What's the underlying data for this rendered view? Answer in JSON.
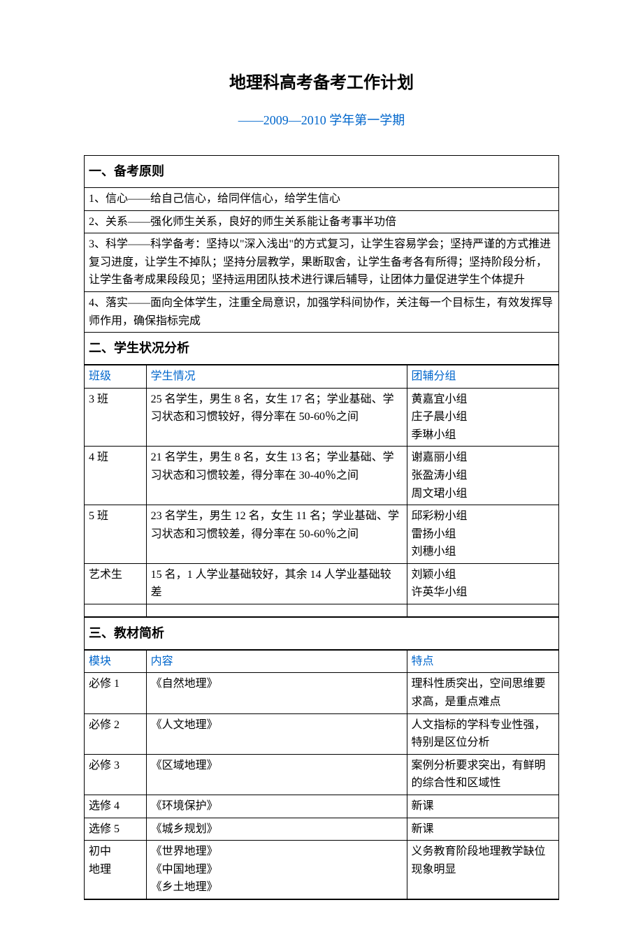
{
  "title": "地理科高考备考工作计划",
  "subtitle": "——2009—2010 学年第一学期",
  "section1": {
    "header": "一、备考原则",
    "items": [
      "1、信心——给自己信心，给同伴信心，给学生信心",
      "2、关系——强化师生关系，良好的师生关系能让备考事半功倍",
      "3、科学——科学备考：坚持以\"深入浅出\"的方式复习，让学生容易学会；坚持严谨的方式推进复习进度，让学生不掉队；坚持分层教学，果断取舍，让学生备考各有所得；坚持阶段分析，让学生备考成果段段见；坚持运用团队技术进行课后辅导，让团体力量促进学生个体提升",
      "4、落实——面向全体学生，注重全局意识，加强学科间协作，关注每一个目标生，有效发挥导师作用，确保指标完成"
    ]
  },
  "section2": {
    "header": "二、学生状况分析",
    "columns": [
      "班级",
      "学生情况",
      "团辅分组"
    ],
    "rows": [
      {
        "class": "3 班",
        "situation": "25 名学生，男生 8 名，女生 17 名；学业基础、学习状态和习惯较好，得分率在 50-60％之间",
        "groups": "黄嘉宜小组\n庄子晨小组\n季琳小组"
      },
      {
        "class": "4 班",
        "situation": "21 名学生，男生 8 名，女生 13 名；学业基础、学习状态和习惯较差，得分率在 30-40％之间",
        "groups": "谢嘉丽小组\n张盈涛小组\n周文珺小组"
      },
      {
        "class": "5 班",
        "situation": "23 名学生，男生 12 名，女生 11 名；学业基础、学习状态和习惯较差，得分率在 50-60％之间",
        "groups": "邱彩粉小组\n雷扬小组\n刘穗小组"
      },
      {
        "class": "艺术生",
        "situation": "15 名，1 人学业基础较好，其余 14 人学业基础较差",
        "groups": "刘颖小组\n许英华小组"
      }
    ]
  },
  "section3": {
    "header": "三、教材简析",
    "columns": [
      "模块",
      "内容",
      "特点"
    ],
    "rows": [
      {
        "module": "必修 1",
        "content": "《自然地理》",
        "feature": "理科性质突出，空间思维要求高，是重点难点"
      },
      {
        "module": "必修 2",
        "content": "《人文地理》",
        "feature": "人文指标的学科专业性强，特别是区位分析"
      },
      {
        "module": "必修 3",
        "content": "《区域地理》",
        "feature": "案例分析要求突出，有鲜明的综合性和区域性"
      },
      {
        "module": "选修 4",
        "content": "《环境保护》",
        "feature": "新课"
      },
      {
        "module": "选修 5",
        "content": "《城乡规划》",
        "feature": "新课"
      },
      {
        "module": "初中\n地理",
        "content": "《世界地理》\n《中国地理》\n《乡土地理》",
        "feature": "义务教育阶段地理教学缺位现象明显"
      }
    ]
  }
}
